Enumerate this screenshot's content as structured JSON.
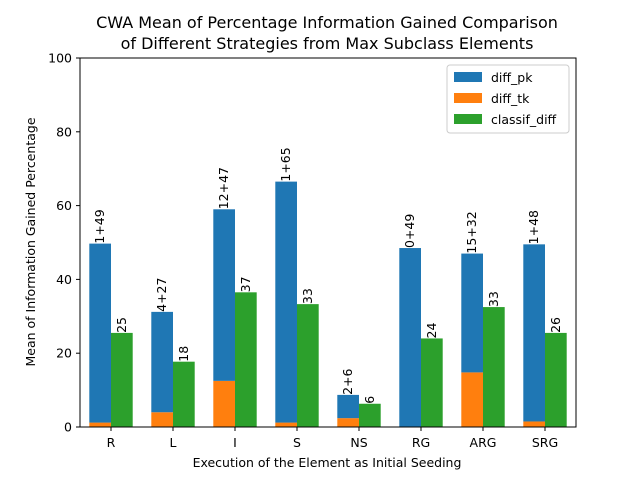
{
  "chart_data": {
    "type": "bar",
    "title": [
      "CWA Mean of Percentage Information Gained Comparison",
      "of Different Strategies from Max Subclass Elements"
    ],
    "xlabel": "Execution of the Element as Initial Seeding",
    "ylabel": "Mean of Information Gained Percentage",
    "ylim": [
      0,
      100
    ],
    "yticks": [
      0,
      20,
      40,
      60,
      80,
      100
    ],
    "categories": [
      "R",
      "L",
      "I",
      "S",
      "NS",
      "RG",
      "ARG",
      "SRG"
    ],
    "series": [
      {
        "name": "diff_pk",
        "color": "#1f77b4",
        "values": [
          48.5,
          27.2,
          46.5,
          65.3,
          6.3,
          48.5,
          32.2,
          48.0
        ]
      },
      {
        "name": "diff_tk",
        "color": "#ff7f0e",
        "values": [
          1.2,
          4.0,
          12.5,
          1.2,
          2.4,
          0.0,
          14.8,
          1.5
        ]
      },
      {
        "name": "classif_diff",
        "color": "#2ca02c",
        "values": [
          25.5,
          17.7,
          36.5,
          33.3,
          6.3,
          24.0,
          32.5,
          25.5
        ]
      }
    ],
    "stack_labels": [
      "1+49",
      "4+27",
      "12+47",
      "1+65",
      "2+6",
      "0+49",
      "15+32",
      "1+48"
    ],
    "classif_labels": [
      "25",
      "18",
      "37",
      "33",
      "6",
      "24",
      "33",
      "26"
    ],
    "legend": "top-right",
    "grid": false
  }
}
